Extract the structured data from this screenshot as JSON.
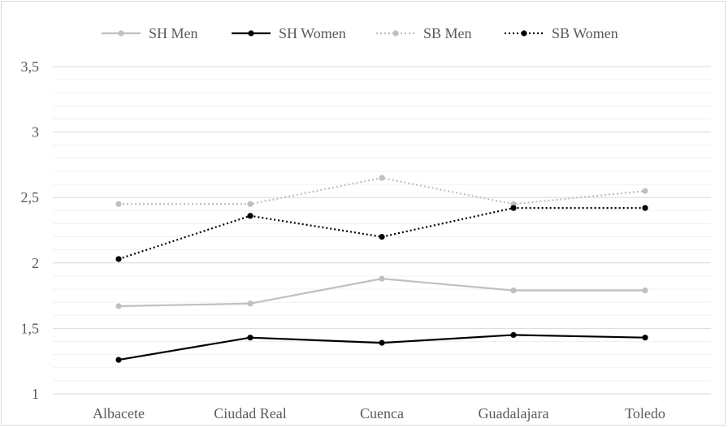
{
  "chart_data": {
    "type": "line",
    "categories": [
      "Albacete",
      "Ciudad Real",
      "Cuenca",
      "Guadalajara",
      "Toledo"
    ],
    "series": [
      {
        "name": "SH Men",
        "values": [
          1.67,
          1.69,
          1.88,
          1.79,
          1.79
        ],
        "color": "#c0c0c0",
        "dash": "solid"
      },
      {
        "name": "SH Women",
        "values": [
          1.26,
          1.43,
          1.39,
          1.45,
          1.43
        ],
        "color": "#000000",
        "dash": "solid"
      },
      {
        "name": "SB Men",
        "values": [
          2.45,
          2.45,
          2.65,
          2.45,
          2.55
        ],
        "color": "#bfbfbf",
        "dash": "dotted"
      },
      {
        "name": "SB Women",
        "values": [
          2.03,
          2.36,
          2.2,
          2.42,
          2.42
        ],
        "color": "#000000",
        "dash": "dotted"
      }
    ],
    "yticks": [
      "1",
      "1,5",
      "2",
      "2,5",
      "3",
      "3,5"
    ],
    "ylim": [
      1,
      3.5
    ],
    "legend_position": "top",
    "grid": true
  }
}
